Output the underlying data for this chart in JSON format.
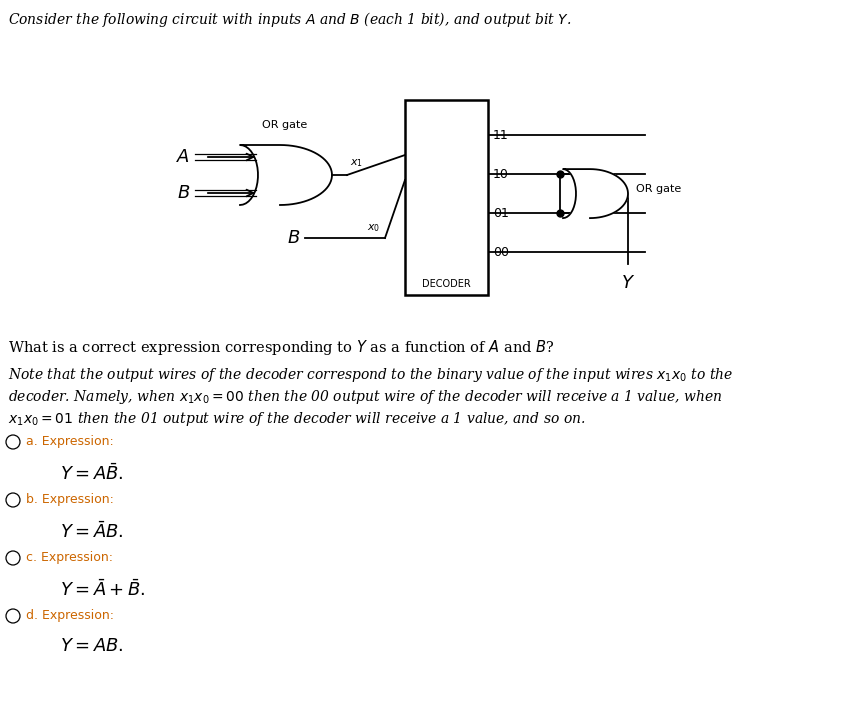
{
  "bg_color": "#ffffff",
  "title": "Consider the following circuit with inputs $A$ and $B$ (each 1 bit), and output bit $Y$.",
  "or_gate_label": "OR gate",
  "or_gate2_label": "OR gate",
  "decoder_label": "DECODER",
  "input_A": "$A$",
  "input_B_top": "$B$",
  "input_B_bot": "$B$",
  "x1_label": "$x_1$",
  "x0_label": "$x_0$",
  "out_labels": [
    "11",
    "10",
    "01",
    "00"
  ],
  "Y_label": "$Y$",
  "question": "What is a correct expression corresponding to $Y$ as a function of $A$ and $B$?",
  "note_line1": "Note that the output wires of the decoder correspond to the binary value of the input wires $x_1x_0$ to the",
  "note_line2": "decoder. Namely, when $x_1x_0 = 00$ then the 00 output wire of the decoder will receive a 1 value, when",
  "note_line3": "$x_1x_0 = 01$ then the 01 output wire of the decoder will receive a 1 value, and so on.",
  "opt_labels": [
    "a. Expression:",
    "b. Expression:",
    "c. Expression:",
    "d. Expression:"
  ],
  "opt_formulas": [
    "$Y = A\\bar{B}.$",
    "$Y = \\bar{A}B.$",
    "$Y = \\bar{A} + \\bar{B}.$",
    "$Y = AB.$"
  ],
  "opt_color": "#cc6600",
  "lw": 1.3
}
